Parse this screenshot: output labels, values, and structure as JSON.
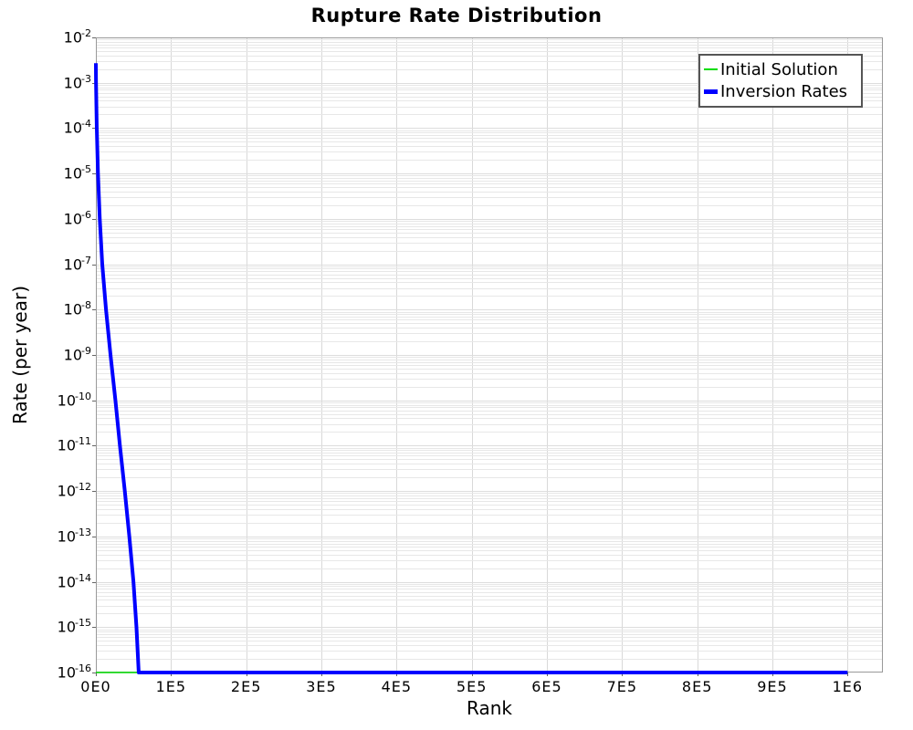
{
  "chart_data": {
    "type": "line",
    "title": "Rupture Rate Distribution",
    "xlabel": "Rank",
    "ylabel": "Rate (per year)",
    "x_axis": {
      "min": 0,
      "max": 1047000,
      "ticks": [
        {
          "label": "0E0",
          "value": 0
        },
        {
          "label": "1E5",
          "value": 100000
        },
        {
          "label": "2E5",
          "value": 200000
        },
        {
          "label": "3E5",
          "value": 300000
        },
        {
          "label": "4E5",
          "value": 400000
        },
        {
          "label": "5E5",
          "value": 500000
        },
        {
          "label": "6E5",
          "value": 600000
        },
        {
          "label": "7E5",
          "value": 700000
        },
        {
          "label": "8E5",
          "value": 800000
        },
        {
          "label": "9E5",
          "value": 900000
        },
        {
          "label": "1E6",
          "value": 1000000
        }
      ]
    },
    "y_axis": {
      "scale": "log",
      "min": 1e-16,
      "max": 0.01,
      "tick_labels": [
        "10^-2",
        "10^-3",
        "10^-4",
        "10^-5",
        "10^-6",
        "10^-7",
        "10^-8",
        "10^-9",
        "10^-10",
        "10^-11",
        "10^-12",
        "10^-13",
        "10^-14",
        "10^-15",
        "10^-16"
      ]
    },
    "grid": {
      "vertical_color": "#d9d9d9",
      "minor_horizontal_color": "#e7e7e7",
      "decade_horizontal_color": "#dddddd",
      "border_color": "#999999",
      "tick_color": "#666666"
    },
    "legend": {
      "position": "top-right",
      "items": [
        {
          "label": "Initial Solution",
          "color": "#00dd00",
          "swatch_height": 2
        },
        {
          "label": "Inversion Rates",
          "color": "#0000ff",
          "swatch_height": 5
        }
      ]
    },
    "series": [
      {
        "name": "Initial Solution",
        "color": "#00dd00",
        "width": 1.5,
        "points": [
          [
            0,
            1e-16
          ],
          [
            1000000,
            1e-16
          ]
        ]
      },
      {
        "name": "Inversion Rates",
        "color": "#0000ff",
        "width": 4,
        "points": [
          [
            0,
            0.0027
          ],
          [
            200,
            0.001
          ],
          [
            1200,
            0.0001
          ],
          [
            2800,
            1e-05
          ],
          [
            5200,
            1e-06
          ],
          [
            8500,
            1e-07
          ],
          [
            13500,
            1e-08
          ],
          [
            19500,
            1e-09
          ],
          [
            26000,
            1e-10
          ],
          [
            32000,
            1e-11
          ],
          [
            38500,
            1e-12
          ],
          [
            44500,
            1e-13
          ],
          [
            50000,
            1e-14
          ],
          [
            54000,
            1e-15
          ],
          [
            57000,
            1e-16
          ],
          [
            1000000,
            1e-16
          ]
        ]
      }
    ]
  }
}
